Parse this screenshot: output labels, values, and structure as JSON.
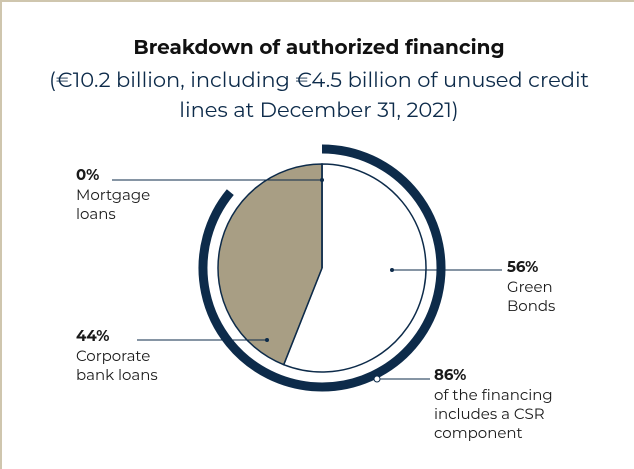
{
  "chart_data": {
    "type": "pie",
    "title": "Breakdown of authorized financing",
    "subtitle": "(€10.2 billion, including €4.5 billion of unused credit lines at December 31, 2021)",
    "categories": [
      "Green Bonds",
      "Corporate bank loans",
      "Mortgage loans"
    ],
    "values": [
      56,
      44,
      0
    ],
    "value_labels": [
      "56%",
      "44%",
      "0%"
    ],
    "colors": [
      "#ffffff",
      "#a89e84",
      "#a89e84"
    ],
    "ring": {
      "value": 86,
      "label": "86%",
      "text": "of the financing includes a CSR component",
      "color": "#0d2b4a"
    }
  }
}
